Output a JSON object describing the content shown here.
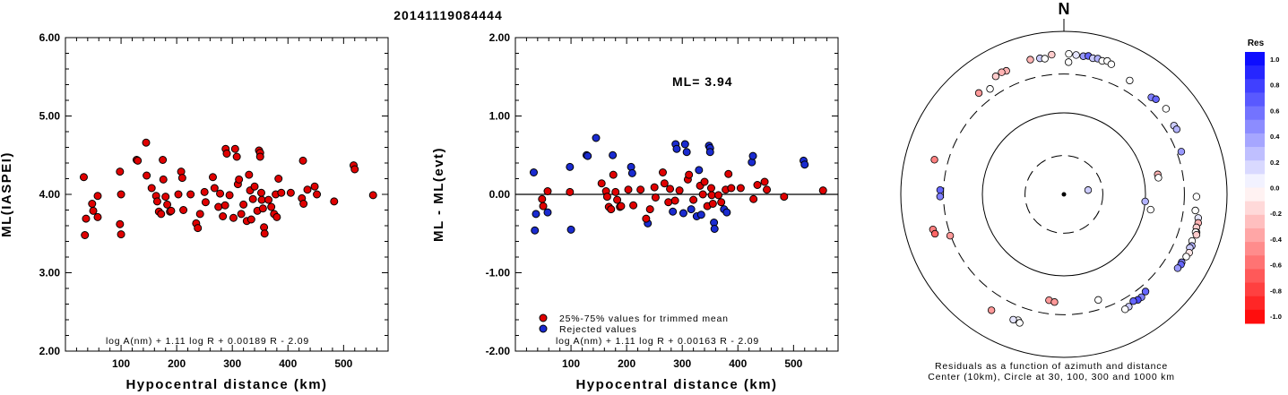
{
  "title": "20141119084444",
  "chart_data": [
    {
      "type": "scatter",
      "ylabel": "ML(IASPEI)",
      "xlabel": "Hypocentral distance (km)",
      "xlim": [
        0,
        580
      ],
      "ylim": [
        2.0,
        6.0
      ],
      "xticks": [
        "100",
        "200",
        "300",
        "400",
        "500"
      ],
      "yticks": [
        "2.00",
        "3.00",
        "4.00",
        "5.00",
        "6.00"
      ],
      "formula": "log A(nm) + 1.11 log R + 0.00189 R - 2.09",
      "point_color": "#e00000",
      "points": [
        [
          33,
          4.22
        ],
        [
          35,
          3.48
        ],
        [
          37,
          3.69
        ],
        [
          48,
          3.88
        ],
        [
          50,
          3.79
        ],
        [
          58,
          3.98
        ],
        [
          58,
          3.71
        ],
        [
          98,
          4.29
        ],
        [
          98,
          3.62
        ],
        [
          100,
          3.49
        ],
        [
          100,
          4.0
        ],
        [
          128,
          4.44
        ],
        [
          130,
          4.43
        ],
        [
          145,
          4.66
        ],
        [
          146,
          4.24
        ],
        [
          155,
          4.08
        ],
        [
          163,
          3.98
        ],
        [
          165,
          3.91
        ],
        [
          168,
          3.78
        ],
        [
          172,
          3.75
        ],
        [
          175,
          4.44
        ],
        [
          176,
          4.19
        ],
        [
          180,
          3.97
        ],
        [
          183,
          3.87
        ],
        [
          188,
          3.78
        ],
        [
          190,
          3.79
        ],
        [
          203,
          4.0
        ],
        [
          208,
          4.29
        ],
        [
          210,
          4.21
        ],
        [
          212,
          3.8
        ],
        [
          225,
          4.0
        ],
        [
          235,
          3.63
        ],
        [
          238,
          3.57
        ],
        [
          242,
          3.75
        ],
        [
          250,
          4.03
        ],
        [
          252,
          3.9
        ],
        [
          265,
          4.22
        ],
        [
          268,
          4.08
        ],
        [
          275,
          3.84
        ],
        [
          278,
          4.01
        ],
        [
          283,
          3.72
        ],
        [
          287,
          3.86
        ],
        [
          288,
          4.58
        ],
        [
          290,
          4.52
        ],
        [
          295,
          3.99
        ],
        [
          302,
          3.7
        ],
        [
          305,
          4.58
        ],
        [
          308,
          4.48
        ],
        [
          310,
          4.13
        ],
        [
          312,
          4.19
        ],
        [
          316,
          3.75
        ],
        [
          320,
          3.87
        ],
        [
          326,
          3.66
        ],
        [
          330,
          4.25
        ],
        [
          332,
          4.05
        ],
        [
          334,
          3.68
        ],
        [
          337,
          3.94
        ],
        [
          340,
          4.1
        ],
        [
          345,
          3.79
        ],
        [
          348,
          4.56
        ],
        [
          350,
          4.53
        ],
        [
          350,
          4.48
        ],
        [
          352,
          4.02
        ],
        [
          353,
          3.93
        ],
        [
          355,
          3.82
        ],
        [
          357,
          3.58
        ],
        [
          358,
          3.5
        ],
        [
          365,
          3.93
        ],
        [
          370,
          3.84
        ],
        [
          375,
          3.75
        ],
        [
          378,
          4.0
        ],
        [
          380,
          3.71
        ],
        [
          383,
          4.2
        ],
        [
          388,
          4.02
        ],
        [
          405,
          4.02
        ],
        [
          425,
          3.95
        ],
        [
          427,
          4.43
        ],
        [
          428,
          3.88
        ],
        [
          435,
          4.06
        ],
        [
          448,
          4.1
        ],
        [
          452,
          4.0
        ],
        [
          483,
          3.91
        ],
        [
          518,
          4.37
        ],
        [
          520,
          4.32
        ],
        [
          553,
          3.99
        ]
      ]
    },
    {
      "type": "scatter",
      "ylabel": "ML - ML(evt)",
      "xlabel": "Hypocentral distance (km)",
      "xlim": [
        0,
        580
      ],
      "ylim": [
        -2.0,
        2.0
      ],
      "xticks": [
        "100",
        "200",
        "300",
        "400",
        "500"
      ],
      "yticks": [
        "-2.00",
        "-1.00",
        "0.00",
        "1.00",
        "2.00"
      ],
      "ml_label": "ML= 3.94",
      "formula": "log A(nm) + 1.11 log R + 0.00163 R - 2.09",
      "zero_line": 0.0,
      "legend": [
        {
          "label": "25%-75% values for trimmed mean",
          "color": "#e00000"
        },
        {
          "label": "Rejected values",
          "color": "#1a2bd0"
        }
      ],
      "kept": [
        [
          48,
          -0.06
        ],
        [
          50,
          -0.15
        ],
        [
          58,
          0.04
        ],
        [
          98,
          0.03
        ],
        [
          155,
          0.14
        ],
        [
          163,
          0.04
        ],
        [
          165,
          -0.03
        ],
        [
          168,
          -0.16
        ],
        [
          172,
          -0.19
        ],
        [
          176,
          0.25
        ],
        [
          180,
          0.03
        ],
        [
          183,
          -0.07
        ],
        [
          188,
          -0.16
        ],
        [
          190,
          -0.15
        ],
        [
          203,
          0.06
        ],
        [
          212,
          -0.14
        ],
        [
          225,
          0.06
        ],
        [
          235,
          -0.31
        ],
        [
          242,
          -0.19
        ],
        [
          250,
          0.09
        ],
        [
          252,
          -0.04
        ],
        [
          265,
          0.28
        ],
        [
          268,
          0.14
        ],
        [
          275,
          -0.1
        ],
        [
          278,
          0.07
        ],
        [
          287,
          -0.08
        ],
        [
          295,
          0.05
        ],
        [
          310,
          0.19
        ],
        [
          312,
          0.25
        ],
        [
          320,
          -0.07
        ],
        [
          332,
          0.11
        ],
        [
          337,
          0.0
        ],
        [
          340,
          0.16
        ],
        [
          345,
          -0.15
        ],
        [
          352,
          0.08
        ],
        [
          353,
          -0.01
        ],
        [
          355,
          -0.12
        ],
        [
          365,
          -0.01
        ],
        [
          370,
          -0.1
        ],
        [
          378,
          0.06
        ],
        [
          383,
          0.26
        ],
        [
          388,
          0.08
        ],
        [
          405,
          0.08
        ],
        [
          428,
          -0.06
        ],
        [
          435,
          0.12
        ],
        [
          448,
          0.16
        ],
        [
          452,
          0.06
        ],
        [
          483,
          -0.03
        ],
        [
          553,
          0.05
        ]
      ],
      "rejected": [
        [
          33,
          0.28
        ],
        [
          35,
          -0.46
        ],
        [
          37,
          -0.25
        ],
        [
          58,
          -0.23
        ],
        [
          98,
          0.35
        ],
        [
          100,
          -0.45
        ],
        [
          128,
          0.5
        ],
        [
          130,
          0.49
        ],
        [
          145,
          0.72
        ],
        [
          175,
          0.5
        ],
        [
          208,
          0.35
        ],
        [
          210,
          0.27
        ],
        [
          238,
          -0.37
        ],
        [
          283,
          -0.22
        ],
        [
          288,
          0.64
        ],
        [
          290,
          0.58
        ],
        [
          302,
          -0.24
        ],
        [
          305,
          0.64
        ],
        [
          308,
          0.54
        ],
        [
          316,
          -0.19
        ],
        [
          326,
          -0.28
        ],
        [
          330,
          0.31
        ],
        [
          334,
          -0.26
        ],
        [
          348,
          0.62
        ],
        [
          350,
          0.59
        ],
        [
          350,
          0.54
        ],
        [
          357,
          -0.36
        ],
        [
          358,
          -0.44
        ],
        [
          375,
          -0.19
        ],
        [
          380,
          -0.23
        ],
        [
          425,
          0.41
        ],
        [
          427,
          0.49
        ],
        [
          518,
          0.43
        ],
        [
          520,
          0.38
        ]
      ]
    }
  ],
  "polar": {
    "north_label": "N",
    "caption_line1": "Residuals as a function of azimuth and distance",
    "caption_line2": "Center (10km), Circle at 30, 100, 300 and 1000 km",
    "colorbar_title": "Res",
    "colorbar_ticks": [
      "1.0",
      "0.8",
      "0.6",
      "0.4",
      "0.2",
      "0.0",
      "-0.2",
      "-0.4",
      "-0.6",
      "-0.8",
      "-1.0"
    ],
    "stations": [
      {
        "az": 2,
        "dist": 530,
        "res": 0.0
      },
      {
        "az": 355,
        "dist": 525,
        "res": -0.2
      },
      {
        "az": 5,
        "dist": 520,
        "res": 0.1
      },
      {
        "az": 8,
        "dist": 515,
        "res": 0.4
      },
      {
        "az": 10,
        "dist": 530,
        "res": 0.6
      },
      {
        "az": 12,
        "dist": 510,
        "res": 0.2
      },
      {
        "az": 14,
        "dist": 520,
        "res": 0.3
      },
      {
        "az": 16,
        "dist": 505,
        "res": 0.0
      },
      {
        "az": 18,
        "dist": 525,
        "res": 0.0
      },
      {
        "az": 20,
        "dist": 500,
        "res": 0.0
      },
      {
        "az": 350,
        "dist": 495,
        "res": 0.2
      },
      {
        "az": 352,
        "dist": 480,
        "res": 0.0
      },
      {
        "az": 346,
        "dist": 505,
        "res": -0.3
      },
      {
        "az": 2,
        "dist": 420,
        "res": 0.0
      },
      {
        "az": 335,
        "dist": 470,
        "res": -0.3
      },
      {
        "az": 333,
        "dist": 480,
        "res": -0.3
      },
      {
        "az": 330,
        "dist": 470,
        "res": -0.2
      },
      {
        "az": 320,
        "dist": 420,
        "res": -0.4
      },
      {
        "az": 325,
        "dist": 380,
        "res": 0.0
      },
      {
        "az": 30,
        "dist": 410,
        "res": 0.0
      },
      {
        "az": 42,
        "dist": 400,
        "res": 0.5
      },
      {
        "az": 44,
        "dist": 420,
        "res": 0.6
      },
      {
        "az": 50,
        "dist": 430,
        "res": 0.0
      },
      {
        "az": 58,
        "dist": 390,
        "res": 0.2
      },
      {
        "az": 60,
        "dist": 395,
        "res": 0.3
      },
      {
        "az": 70,
        "dist": 340,
        "res": 0.4
      },
      {
        "az": 285,
        "dist": 440,
        "res": -0.5
      },
      {
        "az": 272,
        "dist": 330,
        "res": 0.6
      },
      {
        "az": 269,
        "dist": 330,
        "res": 0.5
      },
      {
        "az": 255,
        "dist": 460,
        "res": -0.5
      },
      {
        "az": 253,
        "dist": 450,
        "res": -0.6
      },
      {
        "az": 250,
        "dist": 305,
        "res": -0.4
      },
      {
        "az": 78,
        "dist": 150,
        "res": -0.3
      },
      {
        "az": 80,
        "dist": 150,
        "res": 0.0
      },
      {
        "az": 95,
        "dist": 100,
        "res": 0.3
      },
      {
        "az": 100,
        "dist": 120,
        "res": 0.0
      },
      {
        "az": 100,
        "dist": 470,
        "res": 0.1
      },
      {
        "az": 102,
        "dist": 482,
        "res": -0.3
      },
      {
        "az": 104,
        "dist": 472,
        "res": -0.2
      },
      {
        "az": 106,
        "dist": 492,
        "res": -0.1
      },
      {
        "az": 106,
        "dist": 478,
        "res": 0.0
      },
      {
        "az": 107,
        "dist": 500,
        "res": -0.2
      },
      {
        "az": 110,
        "dist": 470,
        "res": 0.0
      },
      {
        "az": 112,
        "dist": 490,
        "res": 0.3
      },
      {
        "az": 113,
        "dist": 475,
        "res": 0.2
      },
      {
        "az": 115,
        "dist": 495,
        "res": -0.1
      },
      {
        "az": 117,
        "dist": 482,
        "res": 0.0
      },
      {
        "az": 120,
        "dist": 465,
        "res": 0.5
      },
      {
        "az": 121,
        "dist": 472,
        "res": 0.6
      },
      {
        "az": 123,
        "dist": 460,
        "res": 0.4
      },
      {
        "az": 97,
        "dist": 420,
        "res": 0.0
      },
      {
        "az": 91,
        "dist": 422,
        "res": 0.0
      },
      {
        "az": 140,
        "dist": 360,
        "res": 0.6
      },
      {
        "az": 143,
        "dist": 380,
        "res": 0.5
      },
      {
        "az": 145,
        "dist": 380,
        "res": 0.7
      },
      {
        "az": 147,
        "dist": 365,
        "res": 0.6
      },
      {
        "az": 150,
        "dist": 390,
        "res": 0.2
      },
      {
        "az": 152,
        "dist": 395,
        "res": 0.0
      },
      {
        "az": 162,
        "dist": 230,
        "res": 0.0
      },
      {
        "az": 188,
        "dist": 205,
        "res": -0.4
      },
      {
        "az": 185,
        "dist": 212,
        "res": -0.4
      },
      {
        "az": 200,
        "dist": 440,
        "res": 0.0
      },
      {
        "az": 202,
        "dist": 455,
        "res": 0.1
      },
      {
        "az": 199,
        "dist": 465,
        "res": 0.0
      },
      {
        "az": 212,
        "dist": 475,
        "res": -0.4
      },
      {
        "az": 80,
        "dist": 20,
        "res": 0.2
      }
    ]
  }
}
